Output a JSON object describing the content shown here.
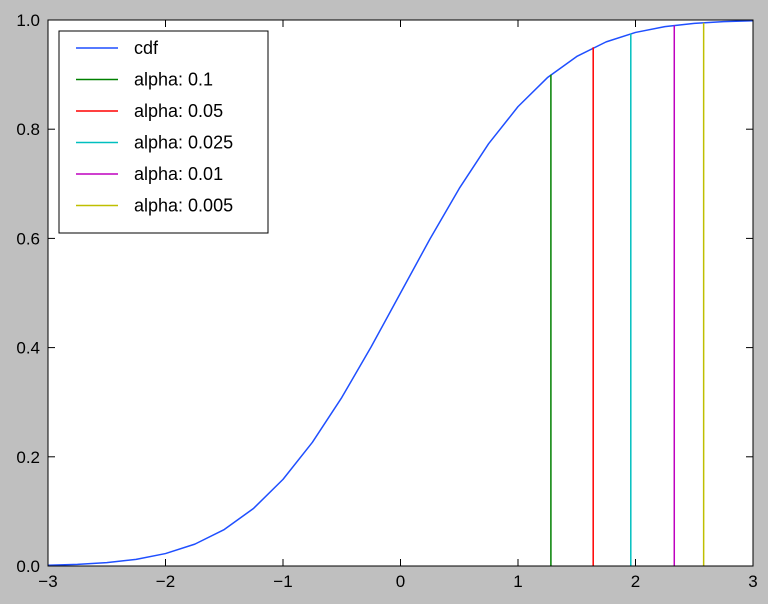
{
  "chart_data": {
    "type": "line",
    "title": "",
    "xlabel": "",
    "ylabel": "",
    "xlim": [
      -3,
      3
    ],
    "ylim": [
      0,
      1
    ],
    "grid": false,
    "legend_position": "top-left",
    "x_ticks": [
      -3,
      -2,
      -1,
      0,
      1,
      2,
      3
    ],
    "x_tick_labels": [
      "−3",
      "−2",
      "−1",
      "0",
      "1",
      "2",
      "3"
    ],
    "y_ticks": [
      0,
      0.2,
      0.4,
      0.6,
      0.8,
      1
    ],
    "y_tick_labels": [
      "0.0",
      "0.2",
      "0.4",
      "0.6",
      "0.8",
      "1.0"
    ],
    "series": [
      {
        "name": "cdf",
        "color": "#1f4fff",
        "x": [
          -3,
          -2.75,
          -2.5,
          -2.25,
          -2,
          -1.75,
          -1.5,
          -1.25,
          -1,
          -0.75,
          -0.5,
          -0.25,
          0,
          0.25,
          0.5,
          0.75,
          1,
          1.25,
          1.5,
          1.75,
          2,
          2.25,
          2.5,
          2.75,
          3
        ],
        "y": [
          0.0013,
          0.003,
          0.0062,
          0.0122,
          0.0228,
          0.0401,
          0.0668,
          0.1056,
          0.1587,
          0.2266,
          0.3085,
          0.4013,
          0.5,
          0.5987,
          0.6915,
          0.7734,
          0.8413,
          0.8944,
          0.9332,
          0.9599,
          0.9772,
          0.9878,
          0.9938,
          0.997,
          0.9987
        ]
      }
    ],
    "vlines": [
      {
        "name": "alpha: 0.1",
        "color": "#008000",
        "x": 1.28,
        "ymin": 0,
        "ymax": 0.9
      },
      {
        "name": "alpha: 0.05",
        "color": "#ff0000",
        "x": 1.64,
        "ymin": 0,
        "ymax": 0.95
      },
      {
        "name": "alpha: 0.025",
        "color": "#00bfbf",
        "x": 1.96,
        "ymin": 0,
        "ymax": 0.975
      },
      {
        "name": "alpha: 0.01",
        "color": "#bf00bf",
        "x": 2.33,
        "ymin": 0,
        "ymax": 0.99
      },
      {
        "name": "alpha: 0.005",
        "color": "#bfbf00",
        "x": 2.58,
        "ymin": 0,
        "ymax": 0.995
      }
    ]
  }
}
